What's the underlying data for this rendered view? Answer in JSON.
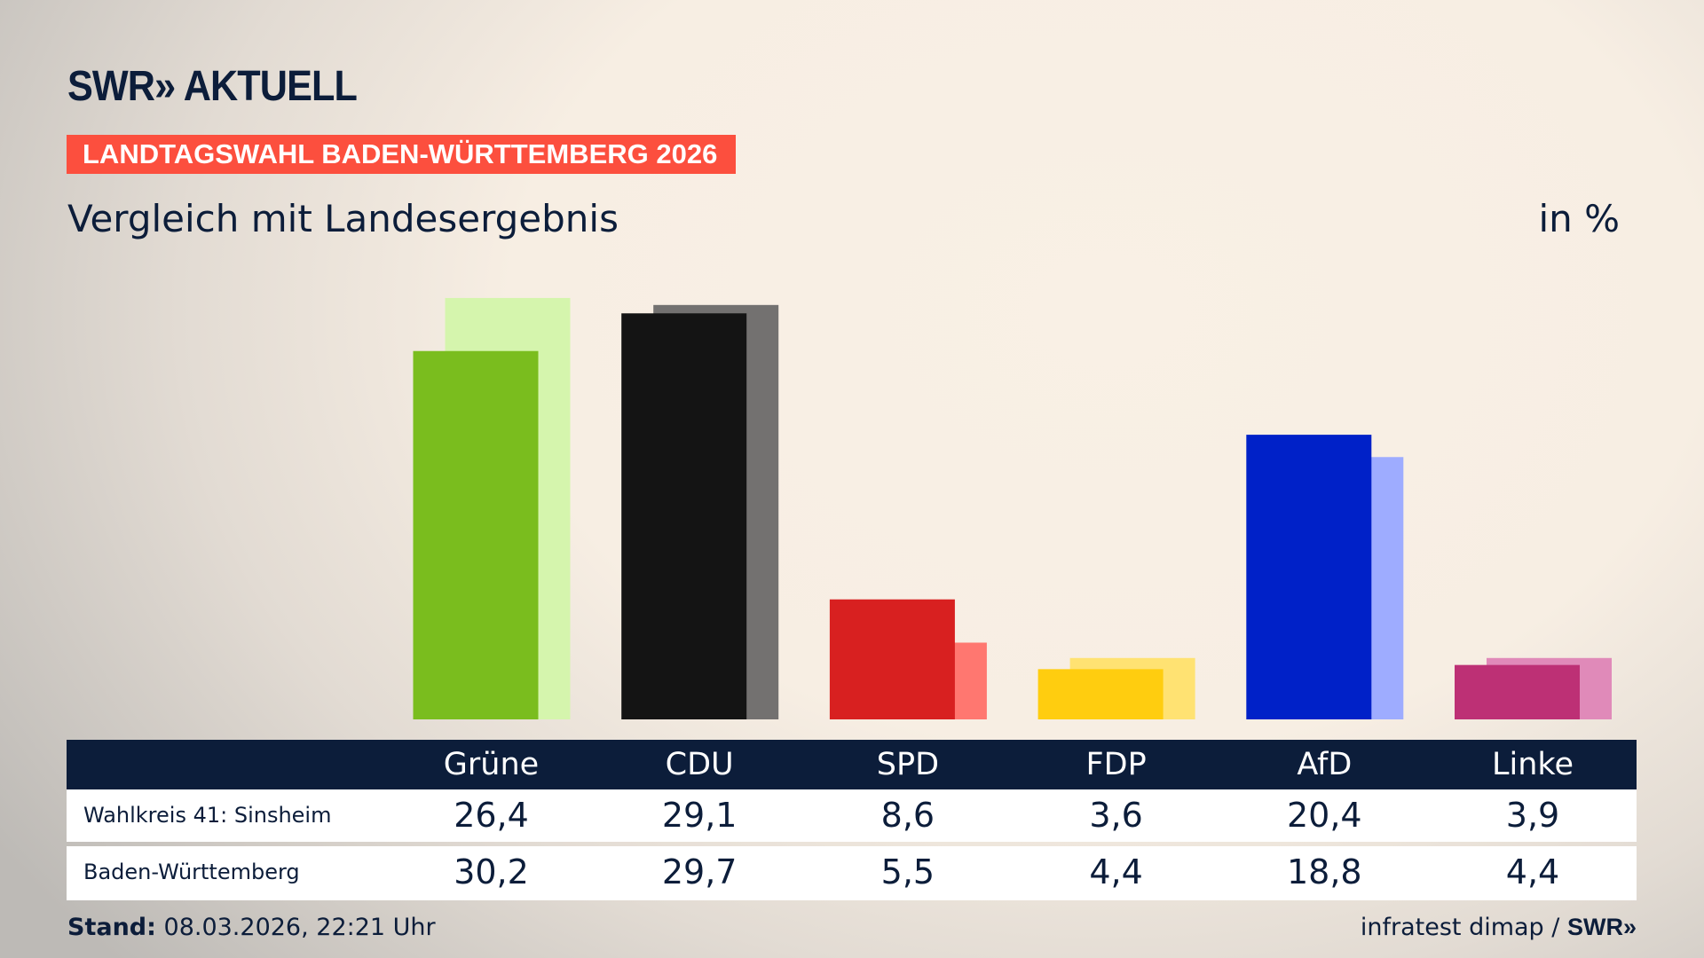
{
  "brand": {
    "logo": "SWR» AKTUELL",
    "footer_logo": "SWR»"
  },
  "banner": "LANDTAGSWAHL BADEN-WÜRTTEMBERG 2026",
  "subtitle": "Vergleich mit Landesergebnis",
  "unit": "in %",
  "footer": {
    "stand_label": "Stand:",
    "stand_value": "08.03.2026, 22:21 Uhr",
    "source": "infratest dimap /"
  },
  "chart_data": {
    "type": "bar",
    "categories": [
      "Grüne",
      "CDU",
      "SPD",
      "FDP",
      "AfD",
      "Linke"
    ],
    "series": [
      {
        "name": "Wahlkreis 41: Sinsheim",
        "values": [
          26.4,
          29.1,
          8.6,
          3.6,
          20.4,
          3.9
        ],
        "labels": [
          "26,4",
          "29,1",
          "8,6",
          "3,6",
          "20,4",
          "3,9"
        ]
      },
      {
        "name": "Baden-Württemberg",
        "values": [
          30.2,
          29.7,
          5.5,
          4.4,
          18.8,
          4.4
        ],
        "labels": [
          "30,2",
          "29,7",
          "5,5",
          "4,4",
          "18,8",
          "4,4"
        ]
      }
    ],
    "colors": [
      "#7abd1e",
      "#141414",
      "#d82020",
      "#ffcd0f",
      "#0021c8",
      "#bd3075"
    ],
    "light_colors": [
      "#d5f5ad",
      "#737170",
      "#ff7770",
      "#ffe272",
      "#9eacff",
      "#e08ab9"
    ],
    "ylim": [
      0,
      32
    ]
  }
}
